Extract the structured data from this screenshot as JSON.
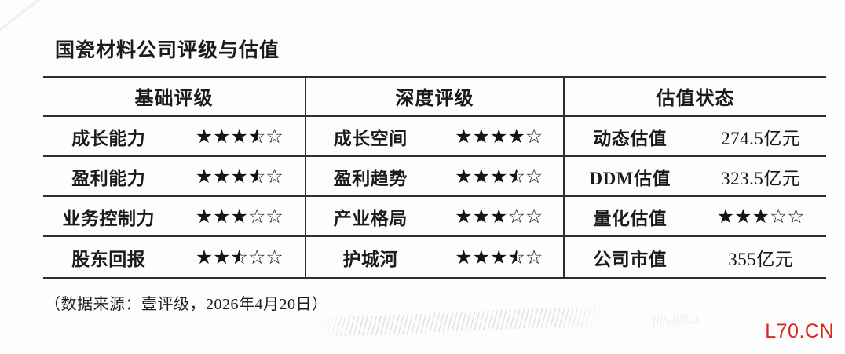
{
  "page": {
    "title": "国瓷材料公司评级与估值",
    "source_note": "（数据来源：壹评级，2026年4月20日）",
    "watermark": "L70.CN",
    "colors": {
      "watermark_red": "#dc261d",
      "table_line": "#2e2e30",
      "text": "#1b1b1d",
      "star": "#141414"
    }
  },
  "table": {
    "groups": [
      {
        "header": "基础评级",
        "rows": [
          {
            "label": "成长能力",
            "stars": 3.5
          },
          {
            "label": "盈利能力",
            "stars": 3.5
          },
          {
            "label": "业务控制力",
            "stars": 3
          },
          {
            "label": "股东回报",
            "stars": 2.5
          }
        ]
      },
      {
        "header": "深度评级",
        "rows": [
          {
            "label": "成长空间",
            "stars": 4
          },
          {
            "label": "盈利趋势",
            "stars": 3.5
          },
          {
            "label": "产业格局",
            "stars": 3
          },
          {
            "label": "护城河",
            "stars": 3.5
          }
        ]
      },
      {
        "header": "估值状态",
        "rows": [
          {
            "label": "动态估值",
            "value": "274.5亿元"
          },
          {
            "label": "DDM估值",
            "value": "323.5亿元"
          },
          {
            "label": "量化估值",
            "stars": 3
          },
          {
            "label": "公司市值",
            "value": "355亿元"
          }
        ]
      }
    ]
  },
  "chart_data": {
    "type": "table",
    "title": "国瓷材料公司评级与估值",
    "column_groups": [
      "基础评级",
      "深度评级",
      "估值状态"
    ],
    "star_ratings": {
      "成长能力": 3.5,
      "盈利能力": 3.5,
      "业务控制力": 3,
      "股东回报": 2.5,
      "成长空间": 4,
      "盈利趋势": 3.5,
      "产业格局": 3,
      "护城河": 3.5,
      "量化估值": 3
    },
    "valuations": {
      "动态估值": "274.5亿元",
      "DDM估值": "323.5亿元",
      "公司市值": "355亿元"
    },
    "star_scale_max": 5,
    "footnote": "（数据来源：壹评级，2026年4月20日）"
  }
}
